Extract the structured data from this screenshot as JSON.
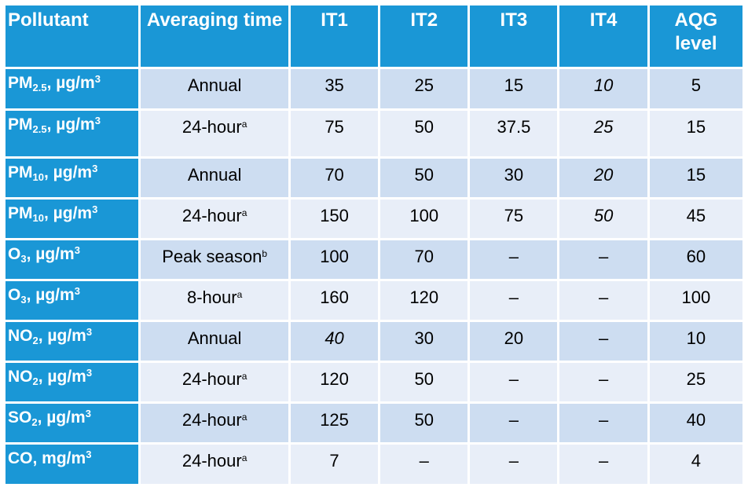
{
  "headers": {
    "pollutant": "Pollutant",
    "averaging_time": "Averaging time",
    "it1": "IT1",
    "it2": "IT2",
    "it3": "IT3",
    "it4": "IT4",
    "aqg_level": "AQG level"
  },
  "rows": [
    {
      "species": "PM",
      "sub": "2.5",
      "unit": ", µg/m",
      "exp": "3",
      "time": "Annual",
      "foot": "",
      "it1": "35",
      "it2": "25",
      "it3": "15",
      "it4": "10",
      "aqg": "5"
    },
    {
      "species": "PM",
      "sub": "2.5",
      "unit": ", µg/m",
      "exp": "3",
      "time": "24-hour",
      "foot": "a",
      "it1": "75",
      "it2": "50",
      "it3": "37.5",
      "it4": "25",
      "aqg": "15"
    },
    {
      "species": "PM",
      "sub": "10",
      "unit": ", µg/m",
      "exp": "3",
      "time": "Annual",
      "foot": "",
      "it1": "70",
      "it2": "50",
      "it3": "30",
      "it4": "20",
      "aqg": "15"
    },
    {
      "species": "PM",
      "sub": "10",
      "unit": ", µg/m",
      "exp": "3",
      "time": "24-hour",
      "foot": "a",
      "it1": "150",
      "it2": "100",
      "it3": "75",
      "it4": "50",
      "aqg": "45"
    },
    {
      "species": "O",
      "sub": "3",
      "unit": ", µg/m",
      "exp": "3",
      "time": "Peak season",
      "foot": "b",
      "it1": "100",
      "it2": "70",
      "it3": "–",
      "it4": "–",
      "aqg": "60"
    },
    {
      "species": "O",
      "sub": "3",
      "unit": ", µg/m",
      "exp": "3",
      "time": "8-hour",
      "foot": "a",
      "it1": "160",
      "it2": "120",
      "it3": "–",
      "it4": "–",
      "aqg": "100"
    },
    {
      "species": "NO",
      "sub": "2",
      "unit": ", µg/m",
      "exp": "3",
      "time": "Annual",
      "foot": "",
      "it1": "40",
      "it2": "30",
      "it3": "20",
      "it4": "–",
      "aqg": "10"
    },
    {
      "species": "NO",
      "sub": "2",
      "unit": ", µg/m",
      "exp": "3",
      "time": "24-hour",
      "foot": "a",
      "it1": "120",
      "it2": "50",
      "it3": "–",
      "it4": "–",
      "aqg": "25"
    },
    {
      "species": "SO",
      "sub": "2",
      "unit": ", µg/m",
      "exp": "3",
      "time": "24-hour",
      "foot": "a",
      "it1": "125",
      "it2": "50",
      "it3": "–",
      "it4": "–",
      "aqg": "40"
    },
    {
      "species": "CO",
      "sub": "",
      "unit": ", mg/m",
      "exp": "3",
      "time": "24-hour",
      "foot": "a",
      "it1": "7",
      "it2": "–",
      "it3": "–",
      "it4": "–",
      "aqg": "4"
    }
  ],
  "colors": {
    "header_blue": "#1a97d6",
    "row_band_dark": "#cdddf1",
    "row_band_light": "#e8eef8"
  }
}
